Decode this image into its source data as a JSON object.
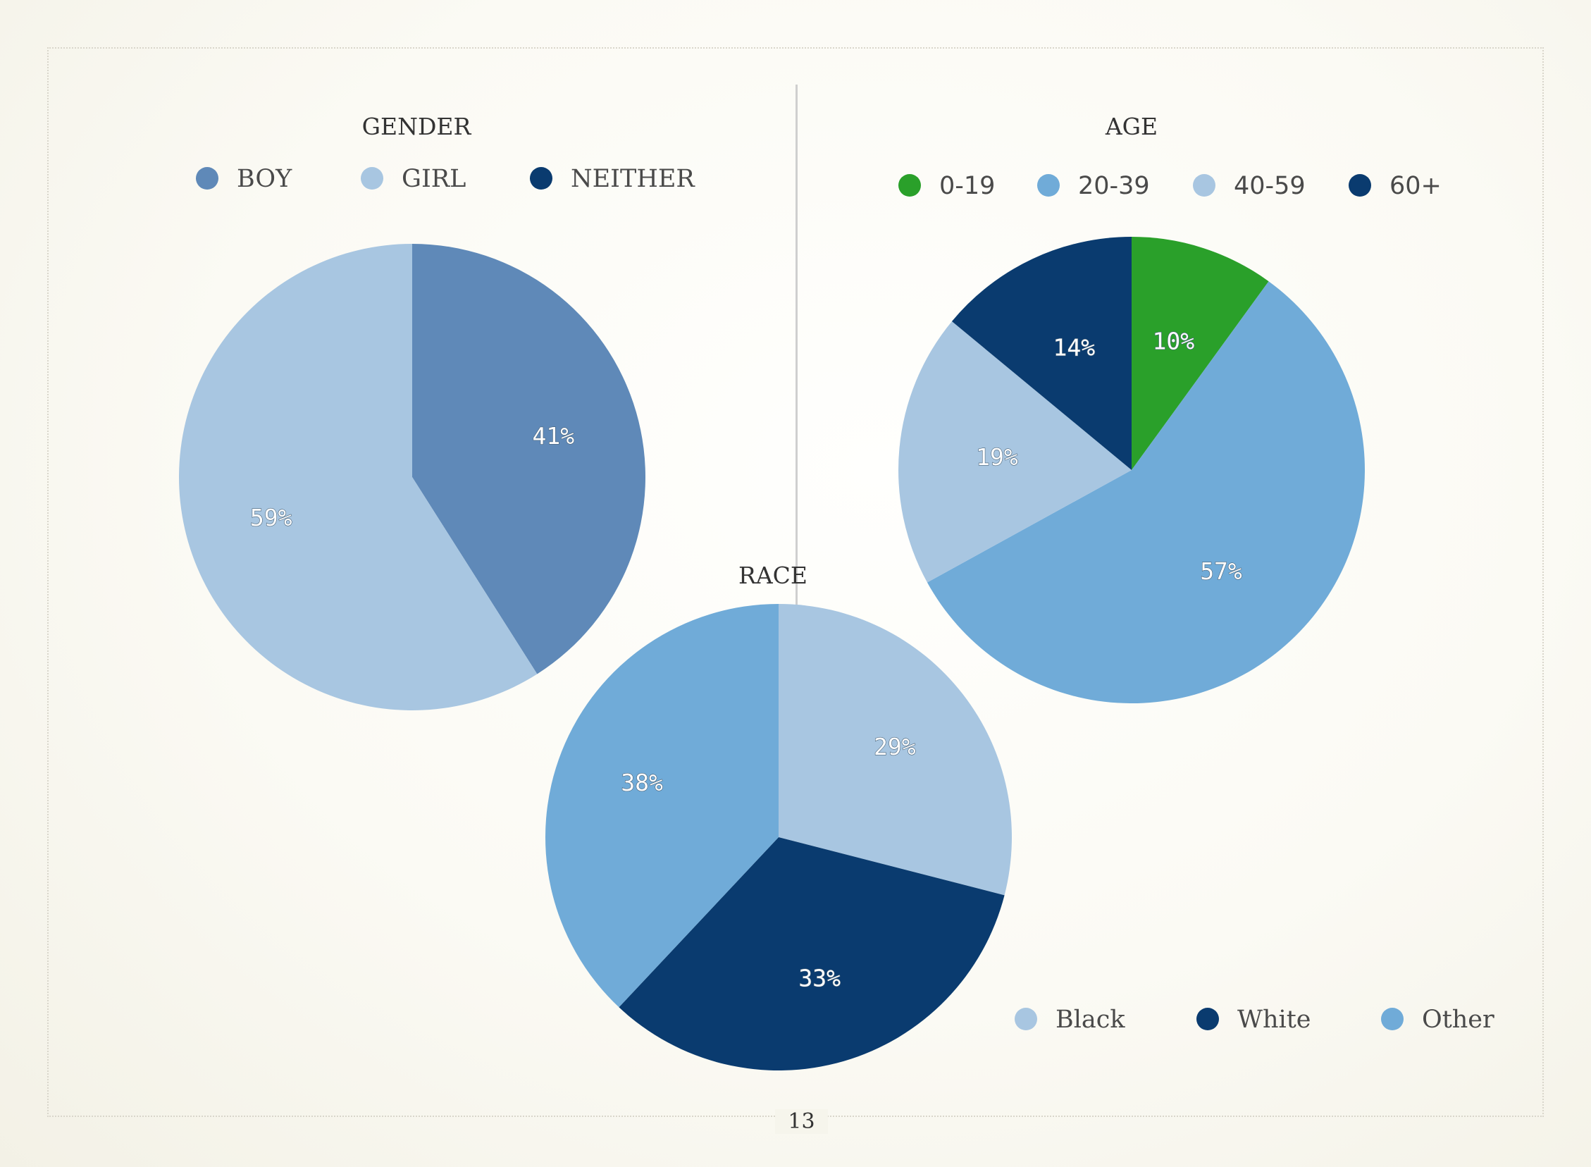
{
  "page_number": "13",
  "chart_data": [
    {
      "type": "pie",
      "title": "GENDER",
      "categories": [
        "BOY",
        "GIRL",
        "NEITHER"
      ],
      "values": [
        41,
        59,
        0
      ],
      "labels": [
        "41%",
        "59%",
        ""
      ],
      "colors": [
        "#5f89b8",
        "#a8c6e1",
        "#0a3b6f"
      ],
      "legend_position": "top",
      "start_angle_deg": 0
    },
    {
      "type": "pie",
      "title": "AGE",
      "categories": [
        "0-19",
        "20-39",
        "40-59",
        "60+"
      ],
      "values": [
        10,
        57,
        19,
        14
      ],
      "labels": [
        "10%",
        "57%",
        "19%",
        "14%"
      ],
      "colors": [
        "#2aa02a",
        "#70abd8",
        "#a8c6e1",
        "#0a3b6f"
      ],
      "legend_position": "top",
      "start_angle_deg": 0
    },
    {
      "type": "pie",
      "title": "RACE",
      "categories": [
        "Black",
        "White",
        "Other"
      ],
      "values": [
        29,
        33,
        38
      ],
      "labels": [
        "29%",
        "33%",
        "38%"
      ],
      "colors": [
        "#a8c6e1",
        "#0a3b6f",
        "#70abd8"
      ],
      "legend_position": "bottom-right",
      "start_angle_deg": 0
    }
  ]
}
